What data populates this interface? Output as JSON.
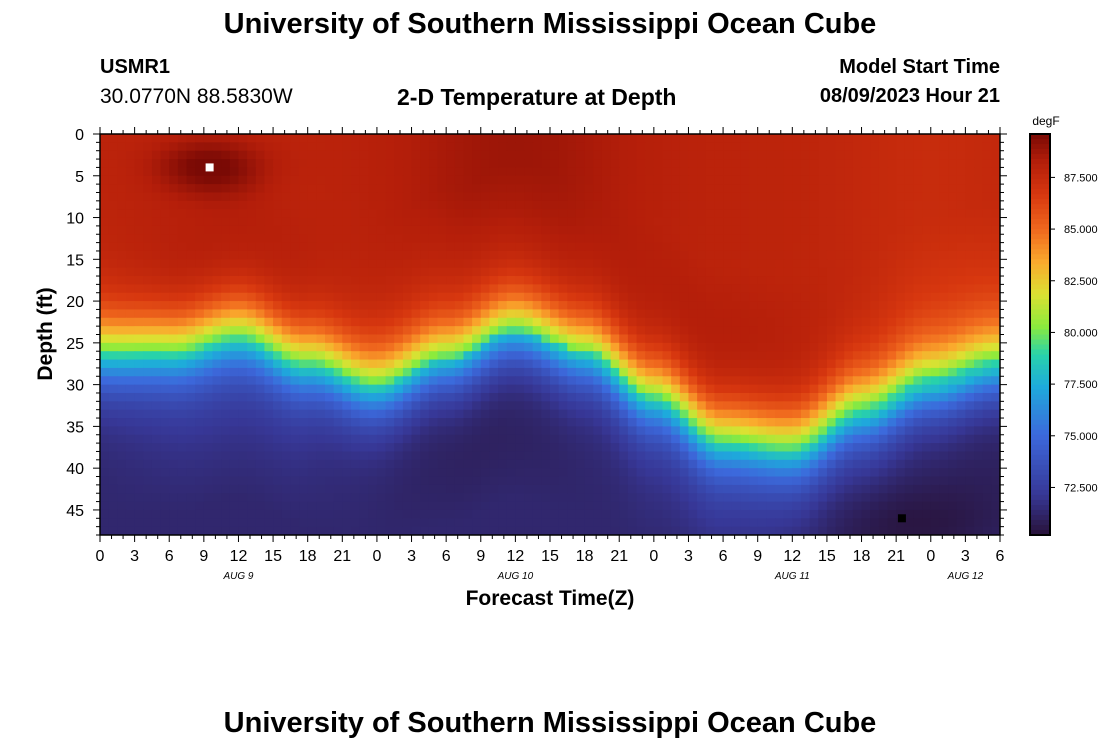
{
  "header": {
    "title": "University of Southern Mississippi Ocean Cube",
    "station_id": "USMR1",
    "station_coords": "30.0770N  88.5830W",
    "chart_title": "2-D Temperature at Depth",
    "start_label": "Model Start Time",
    "start_value": "08/09/2023 Hour 21"
  },
  "footer": {
    "title": "University of Southern Mississippi Ocean Cube"
  },
  "chart_data": {
    "type": "heatmap",
    "title": "2-D Temperature at Depth",
    "xlabel": "Forecast Time(Z)",
    "ylabel": "Depth (ft)",
    "x_ticks": [
      "0",
      "3",
      "6",
      "9",
      "12",
      "15",
      "18",
      "21",
      "0",
      "3",
      "6",
      "9",
      "12",
      "15",
      "18",
      "21",
      "0",
      "3",
      "6",
      "9",
      "12",
      "15",
      "18",
      "21",
      "0",
      "3",
      "6"
    ],
    "x_range_hours": [
      0,
      78
    ],
    "date_labels": [
      {
        "label": "AUG 9",
        "hour": 12
      },
      {
        "label": "AUG 10",
        "hour": 36
      },
      {
        "label": "AUG 11",
        "hour": 60
      },
      {
        "label": "AUG 12",
        "hour": 75
      }
    ],
    "y_ticks": [
      0,
      5,
      10,
      15,
      20,
      25,
      30,
      35,
      40,
      45
    ],
    "y_range_ft": [
      0,
      48
    ],
    "colorbar": {
      "unit": "degF",
      "ticks": [
        "87.500",
        "85.000",
        "82.500",
        "80.000",
        "77.500",
        "75.000",
        "72.500"
      ],
      "range": [
        70.2,
        89.6
      ]
    },
    "thermocline_depth_ft": [
      {
        "hour": 0,
        "depth": 26
      },
      {
        "hour": 6,
        "depth": 25.5
      },
      {
        "hour": 12,
        "depth": 23.5
      },
      {
        "hour": 18,
        "depth": 27
      },
      {
        "hour": 24,
        "depth": 30
      },
      {
        "hour": 30,
        "depth": 27
      },
      {
        "hour": 36,
        "depth": 23.5
      },
      {
        "hour": 42,
        "depth": 26
      },
      {
        "hour": 48,
        "depth": 31
      },
      {
        "hour": 54,
        "depth": 36
      },
      {
        "hour": 60,
        "depth": 37
      },
      {
        "hour": 66,
        "depth": 33
      },
      {
        "hour": 72,
        "depth": 30
      },
      {
        "hour": 78,
        "depth": 28
      }
    ],
    "markers": [
      {
        "name": "max-marker",
        "hour": 9.5,
        "depth": 4,
        "color": "#ffffff"
      },
      {
        "name": "min-marker",
        "hour": 69.5,
        "depth": 46,
        "color": "#000000"
      }
    ]
  }
}
